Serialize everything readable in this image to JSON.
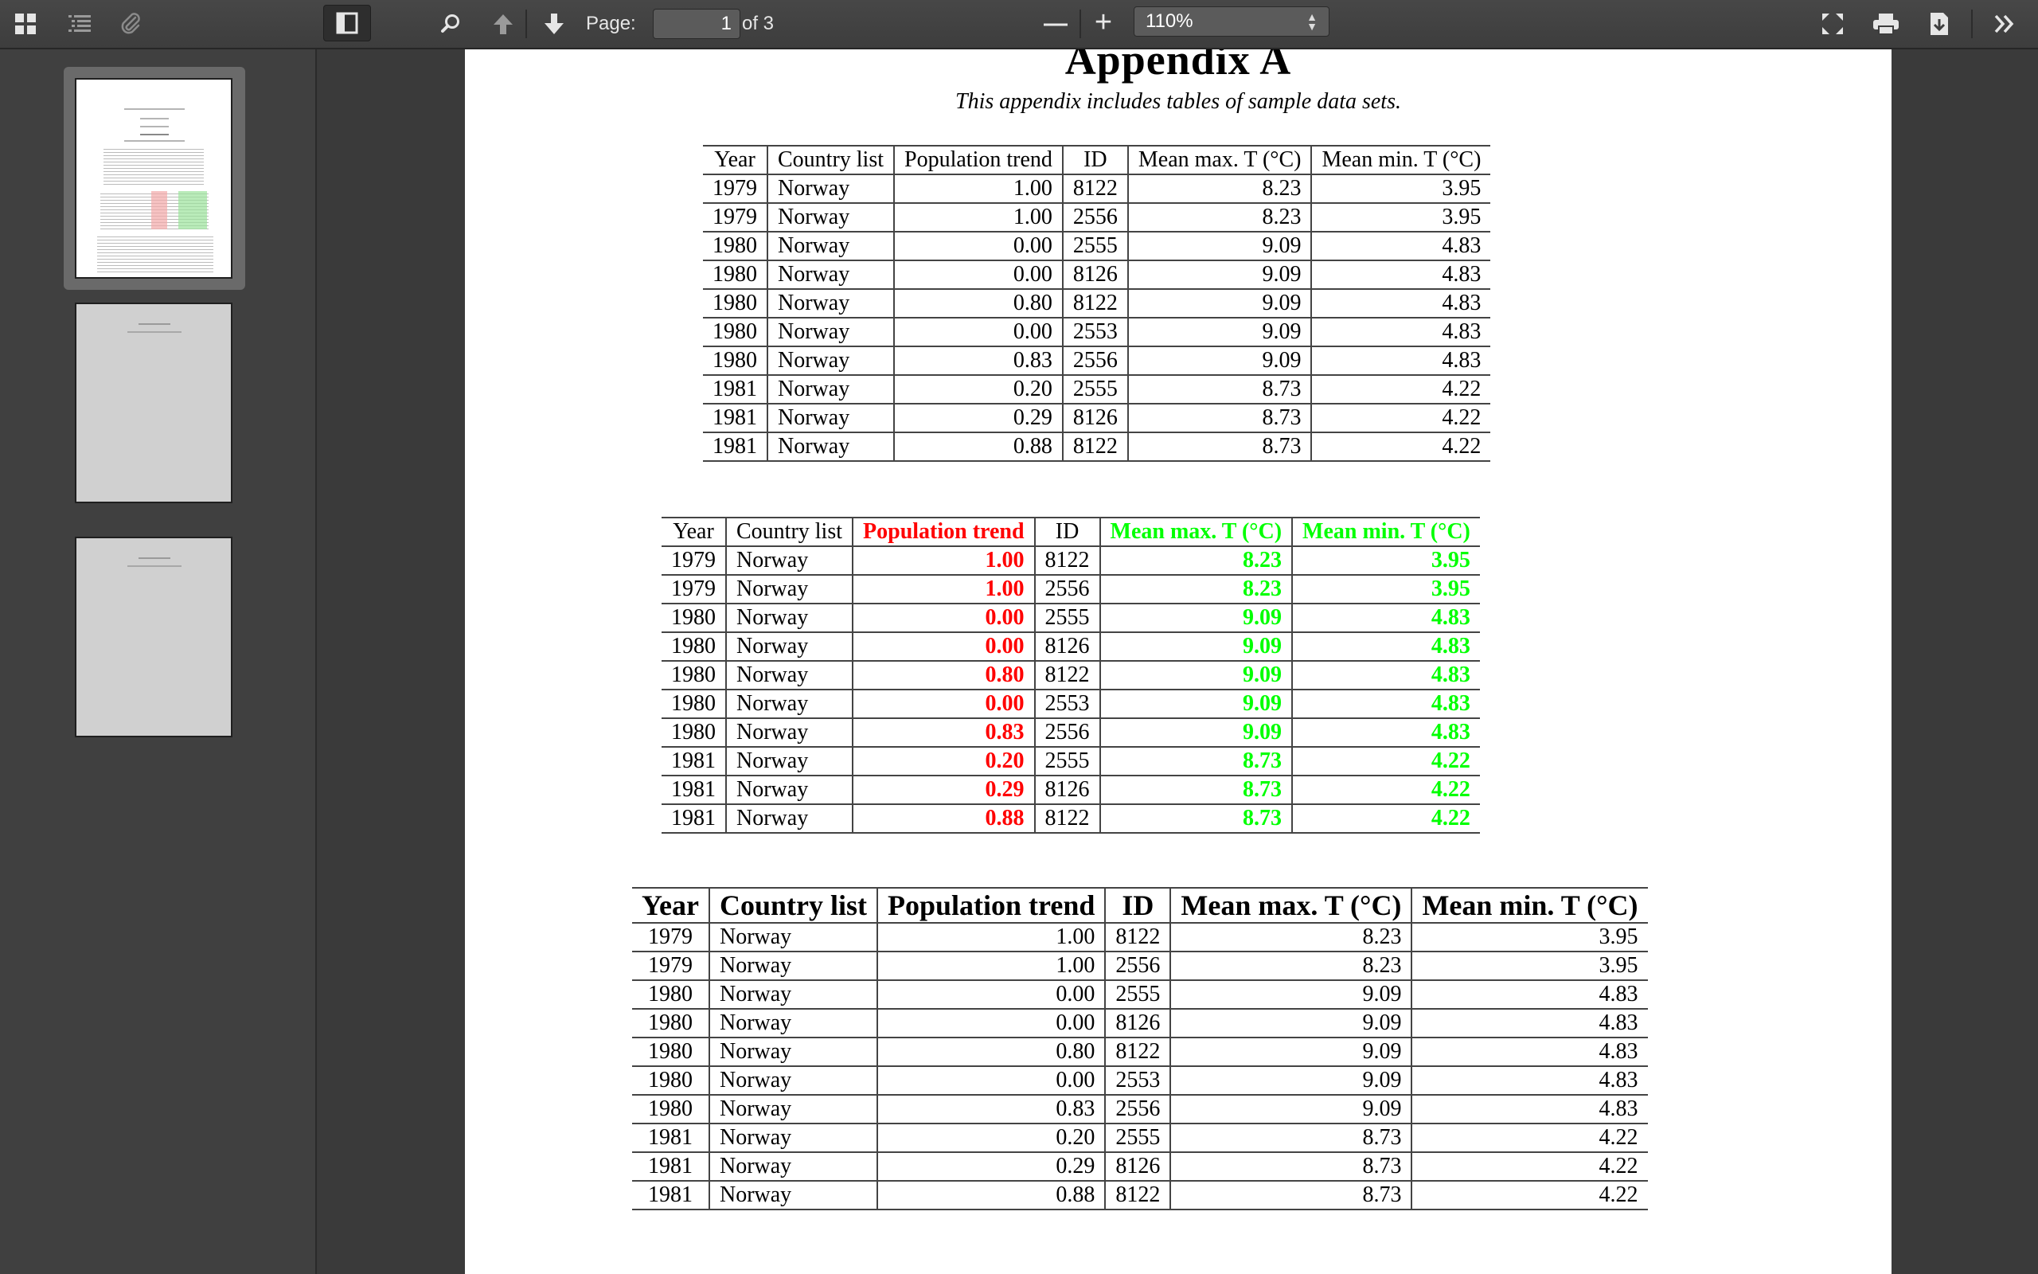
{
  "toolbar": {
    "page_label": "Page:",
    "page_value": "1",
    "page_total": "of 3",
    "zoom": "110%",
    "zoom_out": "—",
    "zoom_in": "+"
  },
  "sidebar": {
    "thumbnails": [
      {
        "page": 1,
        "active": true
      },
      {
        "page": 2,
        "active": false
      },
      {
        "page": 3,
        "active": false
      }
    ]
  },
  "document": {
    "heading": "Appendix A",
    "subtitle": "This appendix includes tables of sample data sets.",
    "columns": [
      "Year",
      "Country list",
      "Population trend",
      "ID",
      "Mean max. T (°C)",
      "Mean min. T (°C)"
    ],
    "rows": [
      [
        "1979",
        "Norway",
        "1.00",
        "8122",
        "8.23",
        "3.95"
      ],
      [
        "1979",
        "Norway",
        "1.00",
        "2556",
        "8.23",
        "3.95"
      ],
      [
        "1980",
        "Norway",
        "0.00",
        "2555",
        "9.09",
        "4.83"
      ],
      [
        "1980",
        "Norway",
        "0.00",
        "8126",
        "9.09",
        "4.83"
      ],
      [
        "1980",
        "Norway",
        "0.80",
        "8122",
        "9.09",
        "4.83"
      ],
      [
        "1980",
        "Norway",
        "0.00",
        "2553",
        "9.09",
        "4.83"
      ],
      [
        "1980",
        "Norway",
        "0.83",
        "2556",
        "9.09",
        "4.83"
      ],
      [
        "1981",
        "Norway",
        "0.20",
        "2555",
        "8.73",
        "4.22"
      ],
      [
        "1981",
        "Norway",
        "0.29",
        "8126",
        "8.73",
        "4.22"
      ],
      [
        "1981",
        "Norway",
        "0.88",
        "8122",
        "8.73",
        "4.22"
      ]
    ],
    "highlight_colors": {
      "population_trend": "#ff0000",
      "temperatures": "#00ff00"
    }
  }
}
